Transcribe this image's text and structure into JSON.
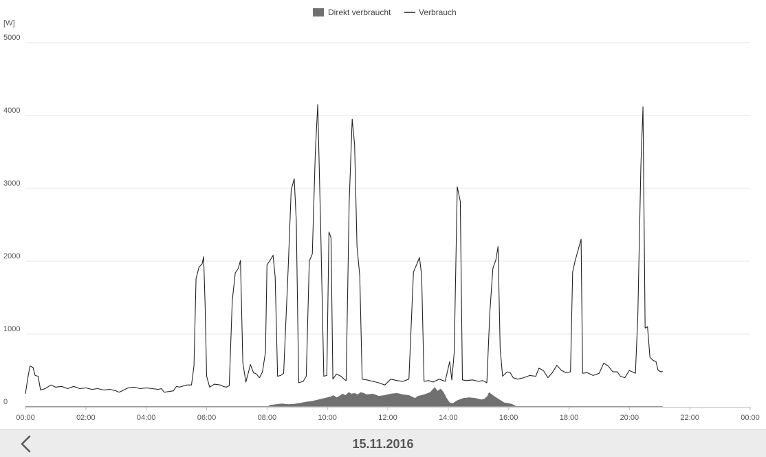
{
  "chart_data": {
    "type": "line",
    "title": "",
    "unit_label": "[W]",
    "ylim": [
      0,
      5000
    ],
    "y_ticks": [
      "0",
      "1000",
      "2000",
      "3000",
      "4000",
      "5000"
    ],
    "y_tick_values": [
      0,
      1000,
      2000,
      3000,
      4000,
      5000
    ],
    "xlim": [
      0,
      24
    ],
    "x_ticks": [
      "00:00",
      "02:00",
      "04:00",
      "06:00",
      "08:00",
      "10:00",
      "12:00",
      "14:00",
      "16:00",
      "18:00",
      "20:00",
      "22:00",
      "00:00"
    ],
    "x_tick_values": [
      0,
      2,
      4,
      6,
      8,
      10,
      12,
      14,
      16,
      18,
      20,
      22,
      24
    ],
    "x_unit": "hours",
    "grid": true,
    "legend_position": "top-center",
    "series": [
      {
        "name": "Direkt verbraucht",
        "kind": "area",
        "color": "#707070",
        "points": [
          [
            8.0,
            0
          ],
          [
            8.1,
            25
          ],
          [
            8.3,
            35
          ],
          [
            8.5,
            45
          ],
          [
            8.7,
            35
          ],
          [
            8.9,
            40
          ],
          [
            9.1,
            55
          ],
          [
            9.3,
            70
          ],
          [
            9.5,
            80
          ],
          [
            9.7,
            100
          ],
          [
            9.9,
            120
          ],
          [
            10.1,
            140
          ],
          [
            10.2,
            160
          ],
          [
            10.3,
            130
          ],
          [
            10.4,
            150
          ],
          [
            10.5,
            180
          ],
          [
            10.6,
            160
          ],
          [
            10.7,
            200
          ],
          [
            10.8,
            180
          ],
          [
            10.9,
            190
          ],
          [
            11.0,
            170
          ],
          [
            11.1,
            200
          ],
          [
            11.2,
            190
          ],
          [
            11.3,
            170
          ],
          [
            11.5,
            180
          ],
          [
            11.7,
            150
          ],
          [
            11.9,
            160
          ],
          [
            12.1,
            180
          ],
          [
            12.3,
            190
          ],
          [
            12.5,
            170
          ],
          [
            12.7,
            160
          ],
          [
            12.9,
            120
          ],
          [
            13.0,
            150
          ],
          [
            13.2,
            170
          ],
          [
            13.4,
            200
          ],
          [
            13.55,
            270
          ],
          [
            13.65,
            220
          ],
          [
            13.75,
            250
          ],
          [
            13.85,
            200
          ],
          [
            13.95,
            120
          ],
          [
            14.05,
            60
          ],
          [
            14.15,
            50
          ],
          [
            14.3,
            90
          ],
          [
            14.5,
            120
          ],
          [
            14.7,
            130
          ],
          [
            14.9,
            120
          ],
          [
            15.1,
            100
          ],
          [
            15.2,
            110
          ],
          [
            15.3,
            150
          ],
          [
            15.35,
            200
          ],
          [
            15.45,
            170
          ],
          [
            15.55,
            140
          ],
          [
            15.7,
            100
          ],
          [
            15.85,
            60
          ],
          [
            16.0,
            50
          ],
          [
            16.1,
            40
          ],
          [
            16.2,
            20
          ],
          [
            16.3,
            0
          ]
        ]
      },
      {
        "name": "Verbrauch",
        "kind": "line",
        "color": "#222222",
        "points": [
          [
            0.0,
            180
          ],
          [
            0.08,
            400
          ],
          [
            0.15,
            560
          ],
          [
            0.25,
            540
          ],
          [
            0.32,
            430
          ],
          [
            0.42,
            420
          ],
          [
            0.5,
            230
          ],
          [
            0.65,
            250
          ],
          [
            0.85,
            300
          ],
          [
            1.0,
            270
          ],
          [
            1.2,
            280
          ],
          [
            1.4,
            250
          ],
          [
            1.6,
            280
          ],
          [
            1.8,
            250
          ],
          [
            2.0,
            260
          ],
          [
            2.2,
            240
          ],
          [
            2.4,
            250
          ],
          [
            2.6,
            230
          ],
          [
            2.8,
            240
          ],
          [
            3.0,
            220
          ],
          [
            3.1,
            200
          ],
          [
            3.2,
            220
          ],
          [
            3.4,
            260
          ],
          [
            3.6,
            270
          ],
          [
            3.8,
            250
          ],
          [
            4.0,
            260
          ],
          [
            4.2,
            250
          ],
          [
            4.4,
            240
          ],
          [
            4.5,
            250
          ],
          [
            4.6,
            200
          ],
          [
            4.75,
            210
          ],
          [
            4.9,
            220
          ],
          [
            5.0,
            280
          ],
          [
            5.1,
            270
          ],
          [
            5.25,
            290
          ],
          [
            5.35,
            300
          ],
          [
            5.5,
            300
          ],
          [
            5.58,
            560
          ],
          [
            5.65,
            1760
          ],
          [
            5.75,
            1920
          ],
          [
            5.85,
            1960
          ],
          [
            5.9,
            2060
          ],
          [
            5.95,
            1400
          ],
          [
            6.0,
            420
          ],
          [
            6.1,
            270
          ],
          [
            6.25,
            310
          ],
          [
            6.45,
            300
          ],
          [
            6.55,
            280
          ],
          [
            6.65,
            270
          ],
          [
            6.75,
            290
          ],
          [
            6.85,
            1460
          ],
          [
            6.95,
            1840
          ],
          [
            7.05,
            1900
          ],
          [
            7.12,
            2010
          ],
          [
            7.2,
            600
          ],
          [
            7.3,
            340
          ],
          [
            7.45,
            580
          ],
          [
            7.55,
            470
          ],
          [
            7.65,
            450
          ],
          [
            7.75,
            400
          ],
          [
            7.85,
            480
          ],
          [
            7.95,
            750
          ],
          [
            8.0,
            1950
          ],
          [
            8.1,
            2010
          ],
          [
            8.2,
            2080
          ],
          [
            8.27,
            1780
          ],
          [
            8.35,
            420
          ],
          [
            8.45,
            430
          ],
          [
            8.55,
            460
          ],
          [
            8.7,
            1900
          ],
          [
            8.8,
            2980
          ],
          [
            8.9,
            3130
          ],
          [
            8.97,
            2550
          ],
          [
            9.05,
            330
          ],
          [
            9.2,
            350
          ],
          [
            9.3,
            420
          ],
          [
            9.4,
            2000
          ],
          [
            9.5,
            2100
          ],
          [
            9.6,
            3500
          ],
          [
            9.68,
            4150
          ],
          [
            9.78,
            2400
          ],
          [
            9.88,
            420
          ],
          [
            9.98,
            430
          ],
          [
            10.05,
            2400
          ],
          [
            10.12,
            2320
          ],
          [
            10.18,
            380
          ],
          [
            10.3,
            450
          ],
          [
            10.45,
            420
          ],
          [
            10.55,
            380
          ],
          [
            10.62,
            360
          ],
          [
            10.72,
            2800
          ],
          [
            10.82,
            3950
          ],
          [
            10.9,
            3600
          ],
          [
            10.98,
            2200
          ],
          [
            11.07,
            1800
          ],
          [
            11.15,
            380
          ],
          [
            11.3,
            370
          ],
          [
            11.5,
            350
          ],
          [
            11.7,
            330
          ],
          [
            11.9,
            300
          ],
          [
            12.1,
            380
          ],
          [
            12.3,
            360
          ],
          [
            12.5,
            350
          ],
          [
            12.7,
            380
          ],
          [
            12.85,
            1850
          ],
          [
            12.95,
            1950
          ],
          [
            13.05,
            2050
          ],
          [
            13.12,
            1800
          ],
          [
            13.2,
            350
          ],
          [
            13.35,
            360
          ],
          [
            13.5,
            340
          ],
          [
            13.7,
            380
          ],
          [
            13.9,
            350
          ],
          [
            14.05,
            620
          ],
          [
            14.12,
            370
          ],
          [
            14.2,
            750
          ],
          [
            14.3,
            3020
          ],
          [
            14.4,
            2820
          ],
          [
            14.47,
            370
          ],
          [
            14.6,
            360
          ],
          [
            14.8,
            370
          ],
          [
            15.0,
            350
          ],
          [
            15.15,
            360
          ],
          [
            15.28,
            330
          ],
          [
            15.38,
            1300
          ],
          [
            15.48,
            1900
          ],
          [
            15.58,
            2020
          ],
          [
            15.65,
            2200
          ],
          [
            15.72,
            800
          ],
          [
            15.8,
            420
          ],
          [
            15.95,
            480
          ],
          [
            16.05,
            470
          ],
          [
            16.15,
            400
          ],
          [
            16.3,
            380
          ],
          [
            16.5,
            400
          ],
          [
            16.7,
            430
          ],
          [
            16.9,
            420
          ],
          [
            17.0,
            530
          ],
          [
            17.15,
            500
          ],
          [
            17.3,
            400
          ],
          [
            17.45,
            470
          ],
          [
            17.6,
            570
          ],
          [
            17.75,
            500
          ],
          [
            17.9,
            470
          ],
          [
            18.05,
            480
          ],
          [
            18.12,
            1850
          ],
          [
            18.2,
            2000
          ],
          [
            18.3,
            2150
          ],
          [
            18.4,
            2300
          ],
          [
            18.45,
            460
          ],
          [
            18.6,
            470
          ],
          [
            18.8,
            430
          ],
          [
            19.0,
            460
          ],
          [
            19.15,
            600
          ],
          [
            19.3,
            560
          ],
          [
            19.45,
            480
          ],
          [
            19.6,
            480
          ],
          [
            19.7,
            420
          ],
          [
            19.85,
            400
          ],
          [
            20.0,
            500
          ],
          [
            20.1,
            480
          ],
          [
            20.2,
            460
          ],
          [
            20.28,
            1250
          ],
          [
            20.38,
            3300
          ],
          [
            20.45,
            4120
          ],
          [
            20.52,
            1080
          ],
          [
            20.6,
            1100
          ],
          [
            20.68,
            680
          ],
          [
            20.78,
            640
          ],
          [
            20.88,
            620
          ],
          [
            20.95,
            500
          ],
          [
            21.05,
            480
          ],
          [
            21.1,
            490
          ]
        ]
      }
    ]
  },
  "footer": {
    "date": "15.11.2016"
  }
}
